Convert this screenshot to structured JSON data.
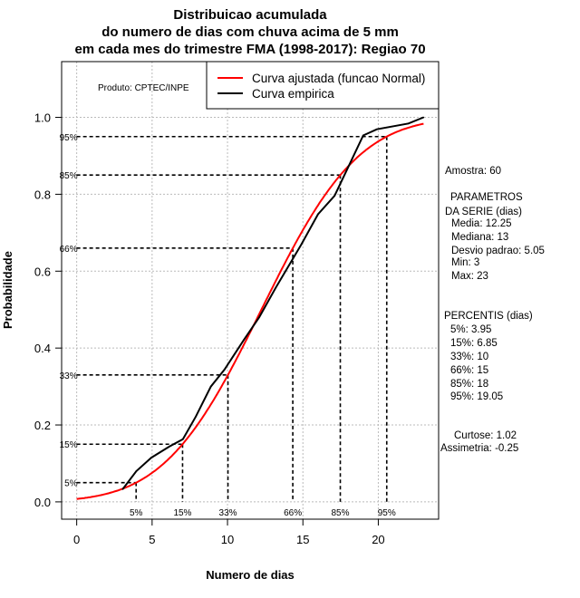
{
  "chart_data": {
    "type": "line",
    "title": [
      "Distribuicao acumulada",
      "do numero de dias com chuva acima de 5 mm",
      "em cada mes do trimestre FMA (1998-2017): Regiao 70"
    ],
    "xlabel": "Numero de dias",
    "ylabel": "Probabilidade",
    "xlim": [
      -1,
      24
    ],
    "ylim": [
      -0.045,
      1.145
    ],
    "xticks": [
      0,
      5,
      10,
      15,
      20
    ],
    "yticks": [
      0.0,
      0.2,
      0.4,
      0.6,
      0.8,
      1.0
    ],
    "ytick_labels": [
      "0.0",
      "0.2",
      "0.4",
      "0.6",
      "0.8",
      "1.0"
    ],
    "grid": true,
    "legend_position": "top-right",
    "credit": "Produto: CPTEC/INPE",
    "series": [
      {
        "name": "Curva ajustada (funcao Normal)",
        "color": "#ff0000",
        "kind": "normal_cdf",
        "mean": 12.25,
        "sd": 5.05,
        "x_range": [
          0,
          23
        ]
      },
      {
        "name": "Curva empirica",
        "color": "#000000",
        "x": [
          3.05,
          3.95,
          4.95,
          6.15,
          7.04,
          7.9,
          8.9,
          9.8,
          11.1,
          12.1,
          13.2,
          14.9,
          16.0,
          17.1,
          19.0,
          19.9,
          22.0,
          23.0
        ],
        "y": [
          0.033,
          0.08,
          0.115,
          0.144,
          0.163,
          0.222,
          0.3,
          0.344,
          0.422,
          0.48,
          0.557,
          0.67,
          0.748,
          0.796,
          0.953,
          0.969,
          0.984,
          1.0
        ]
      }
    ],
    "percentile_lines": [
      {
        "label": "5%",
        "p": 0.05,
        "x": 3.94
      },
      {
        "label": "15%",
        "p": 0.15,
        "x": 7.02
      },
      {
        "label": "33%",
        "p": 0.33,
        "x": 10.03
      },
      {
        "label": "66%",
        "p": 0.66,
        "x": 14.33
      },
      {
        "label": "85%",
        "p": 0.85,
        "x": 17.48
      },
      {
        "label": "95%",
        "p": 0.95,
        "x": 20.56
      }
    ],
    "side_panel": [
      "Amostra: 60",
      "PARAMETROS",
      "DA SERIE (dias)",
      "Media: 12.25",
      "Mediana: 13",
      "Desvio padrao: 5.05",
      "Min: 3",
      "Max: 23",
      "PERCENTIS (dias)",
      "5%: 3.95",
      "15%: 6.85",
      "33%: 10",
      "66%: 15",
      "85%: 18",
      "95%: 19.05",
      "Curtose: 1.02",
      "Assimetria: -0.25"
    ]
  }
}
